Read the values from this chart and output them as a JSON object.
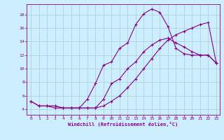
{
  "xlabel": "Windchill (Refroidissement éolien,°C)",
  "bg_color": "#cceeff",
  "grid_color": "#aacccc",
  "line_color": "#880088",
  "xlim": [
    -0.5,
    23.4
  ],
  "ylim": [
    3.2,
    19.5
  ],
  "yticks": [
    4,
    6,
    8,
    10,
    12,
    14,
    16,
    18
  ],
  "xticks": [
    0,
    1,
    2,
    3,
    4,
    5,
    6,
    7,
    8,
    9,
    10,
    11,
    12,
    13,
    14,
    15,
    16,
    17,
    18,
    19,
    20,
    21,
    22,
    23
  ],
  "line1_x": [
    0,
    1,
    2,
    3,
    4,
    5,
    6,
    7,
    8,
    9,
    10,
    11,
    12,
    13,
    14,
    15,
    16,
    17,
    18,
    19,
    20,
    21,
    22,
    23
  ],
  "line1_y": [
    5.2,
    4.5,
    4.5,
    4.5,
    4.2,
    4.2,
    4.2,
    4.2,
    4.2,
    4.5,
    5.2,
    6.0,
    7.2,
    8.5,
    10.0,
    11.5,
    13.0,
    14.2,
    15.0,
    15.5,
    16.0,
    16.5,
    16.8,
    10.8
  ],
  "line2_x": [
    0,
    1,
    2,
    3,
    4,
    5,
    6,
    7,
    8,
    9,
    10,
    11,
    12,
    13,
    14,
    15,
    16,
    17,
    18,
    19,
    20,
    21,
    22,
    23
  ],
  "line2_y": [
    5.2,
    4.5,
    4.5,
    4.5,
    4.2,
    4.2,
    4.2,
    5.5,
    7.8,
    10.5,
    11.0,
    13.0,
    13.8,
    16.5,
    18.1,
    18.8,
    18.3,
    16.2,
    13.0,
    12.2,
    12.0,
    12.0,
    12.0,
    10.8
  ],
  "line3_x": [
    1,
    2,
    3,
    4,
    5,
    6,
    7,
    8,
    9,
    10,
    11,
    12,
    13,
    14,
    15,
    16,
    17,
    18,
    19,
    20,
    21,
    22,
    23
  ],
  "line3_y": [
    4.5,
    4.5,
    4.2,
    4.2,
    4.2,
    4.2,
    4.2,
    4.2,
    5.5,
    7.8,
    8.5,
    10.0,
    11.0,
    12.5,
    13.5,
    14.2,
    14.5,
    13.8,
    13.2,
    12.5,
    12.0,
    12.0,
    10.8
  ]
}
